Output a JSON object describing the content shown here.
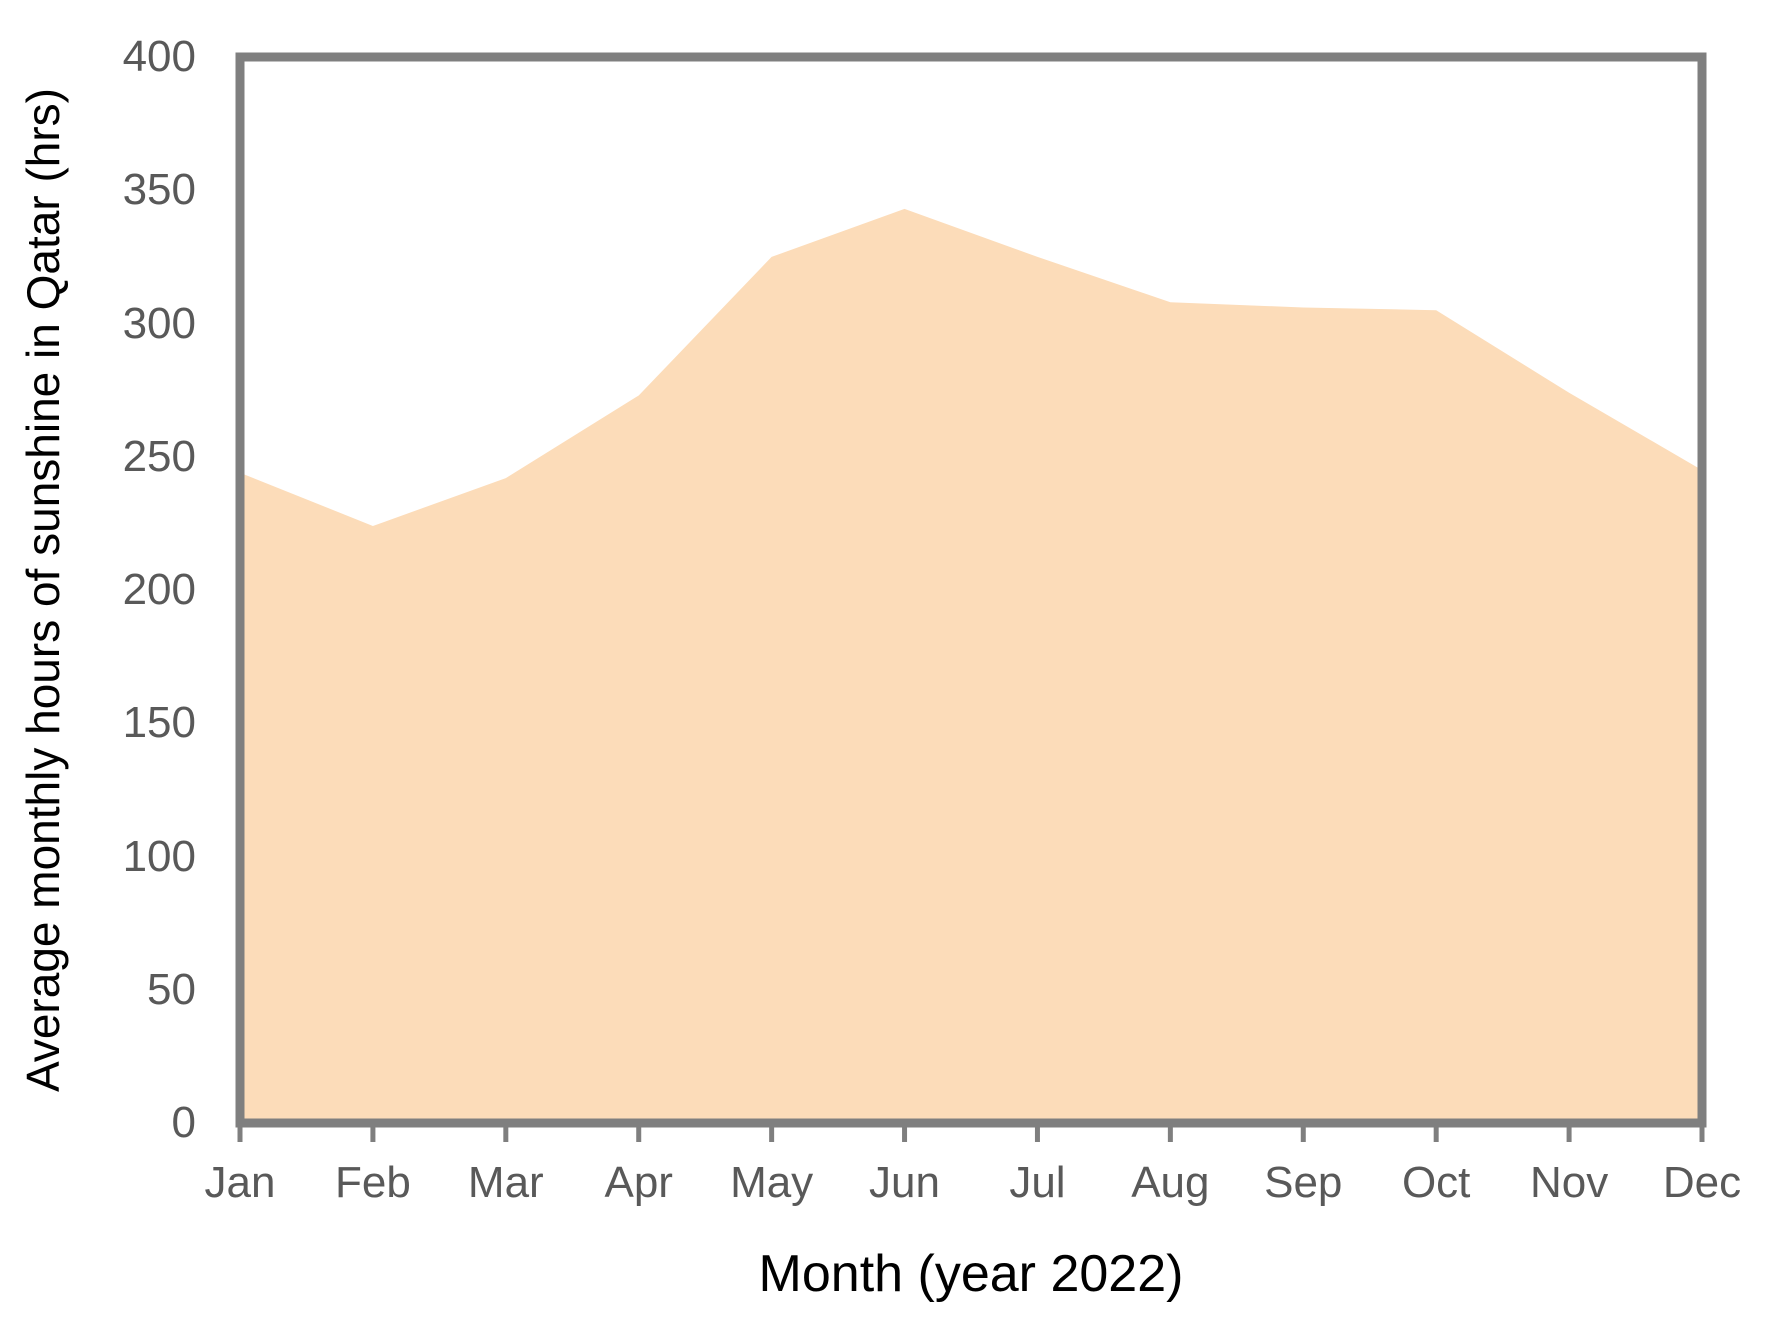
{
  "chart_data": {
    "type": "area",
    "categories": [
      "Jan",
      "Feb",
      "Mar",
      "Apr",
      "May",
      "Jun",
      "Jul",
      "Aug",
      "Sep",
      "Oct",
      "Nov",
      "Dec"
    ],
    "values": [
      244,
      224,
      242,
      273,
      325,
      343,
      325,
      308,
      306,
      305,
      274,
      245
    ],
    "title": "",
    "xlabel": "Month (year 2022)",
    "ylabel": "Average monthly hours of sunshine in Qatar (hrs)",
    "ylim": [
      0,
      400
    ],
    "y_ticks": [
      0,
      50,
      100,
      150,
      200,
      250,
      300,
      350,
      400
    ],
    "grid": false,
    "legend": "none",
    "colors": {
      "area_fill": "#FCDCB9",
      "axis_line": "#7F7F7F",
      "tick_label": "#595959",
      "axis_title": "#000000"
    }
  }
}
